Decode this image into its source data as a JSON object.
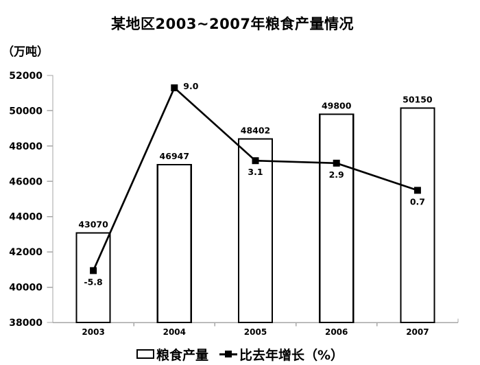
{
  "chart_data": {
    "type": "bar",
    "combo": "bar+line",
    "title": "某地区2003~2007年粮食产量情况",
    "unit_label": "（万吨）",
    "categories": [
      "2003",
      "2004",
      "2005",
      "2006",
      "2007"
    ],
    "series": [
      {
        "name": "粮食产量",
        "type": "bar",
        "values": [
          43070,
          46947,
          48402,
          49800,
          50150
        ],
        "labels": [
          "43070",
          "46947",
          "48402",
          "49800",
          "50150"
        ]
      },
      {
        "name": "比去年增长（%）",
        "type": "line",
        "values": [
          -5.8,
          9.0,
          3.1,
          2.9,
          0.7
        ],
        "labels": [
          "-5.8",
          "9.0",
          "3.1",
          "2.9",
          "0.7"
        ],
        "label_placements": [
          "below",
          "right",
          "below",
          "below",
          "below"
        ]
      }
    ],
    "y_axis": {
      "min": 38000,
      "max": 52000,
      "step": 2000,
      "tick_labels": [
        "52000",
        "50000",
        "48000",
        "46000",
        "44000",
        "42000",
        "40000",
        "38000"
      ]
    },
    "secondary_y_axis": {
      "min": -10,
      "max": 10,
      "visible": false
    },
    "legend_position": "bottom",
    "grid": false
  },
  "colors": {
    "background": "#ffffff",
    "bar_fill": "#ffffff",
    "bar_border": "#000000",
    "line": "#000000",
    "marker": "#000000",
    "axis": "#a6a6a6",
    "text": "#000000"
  }
}
